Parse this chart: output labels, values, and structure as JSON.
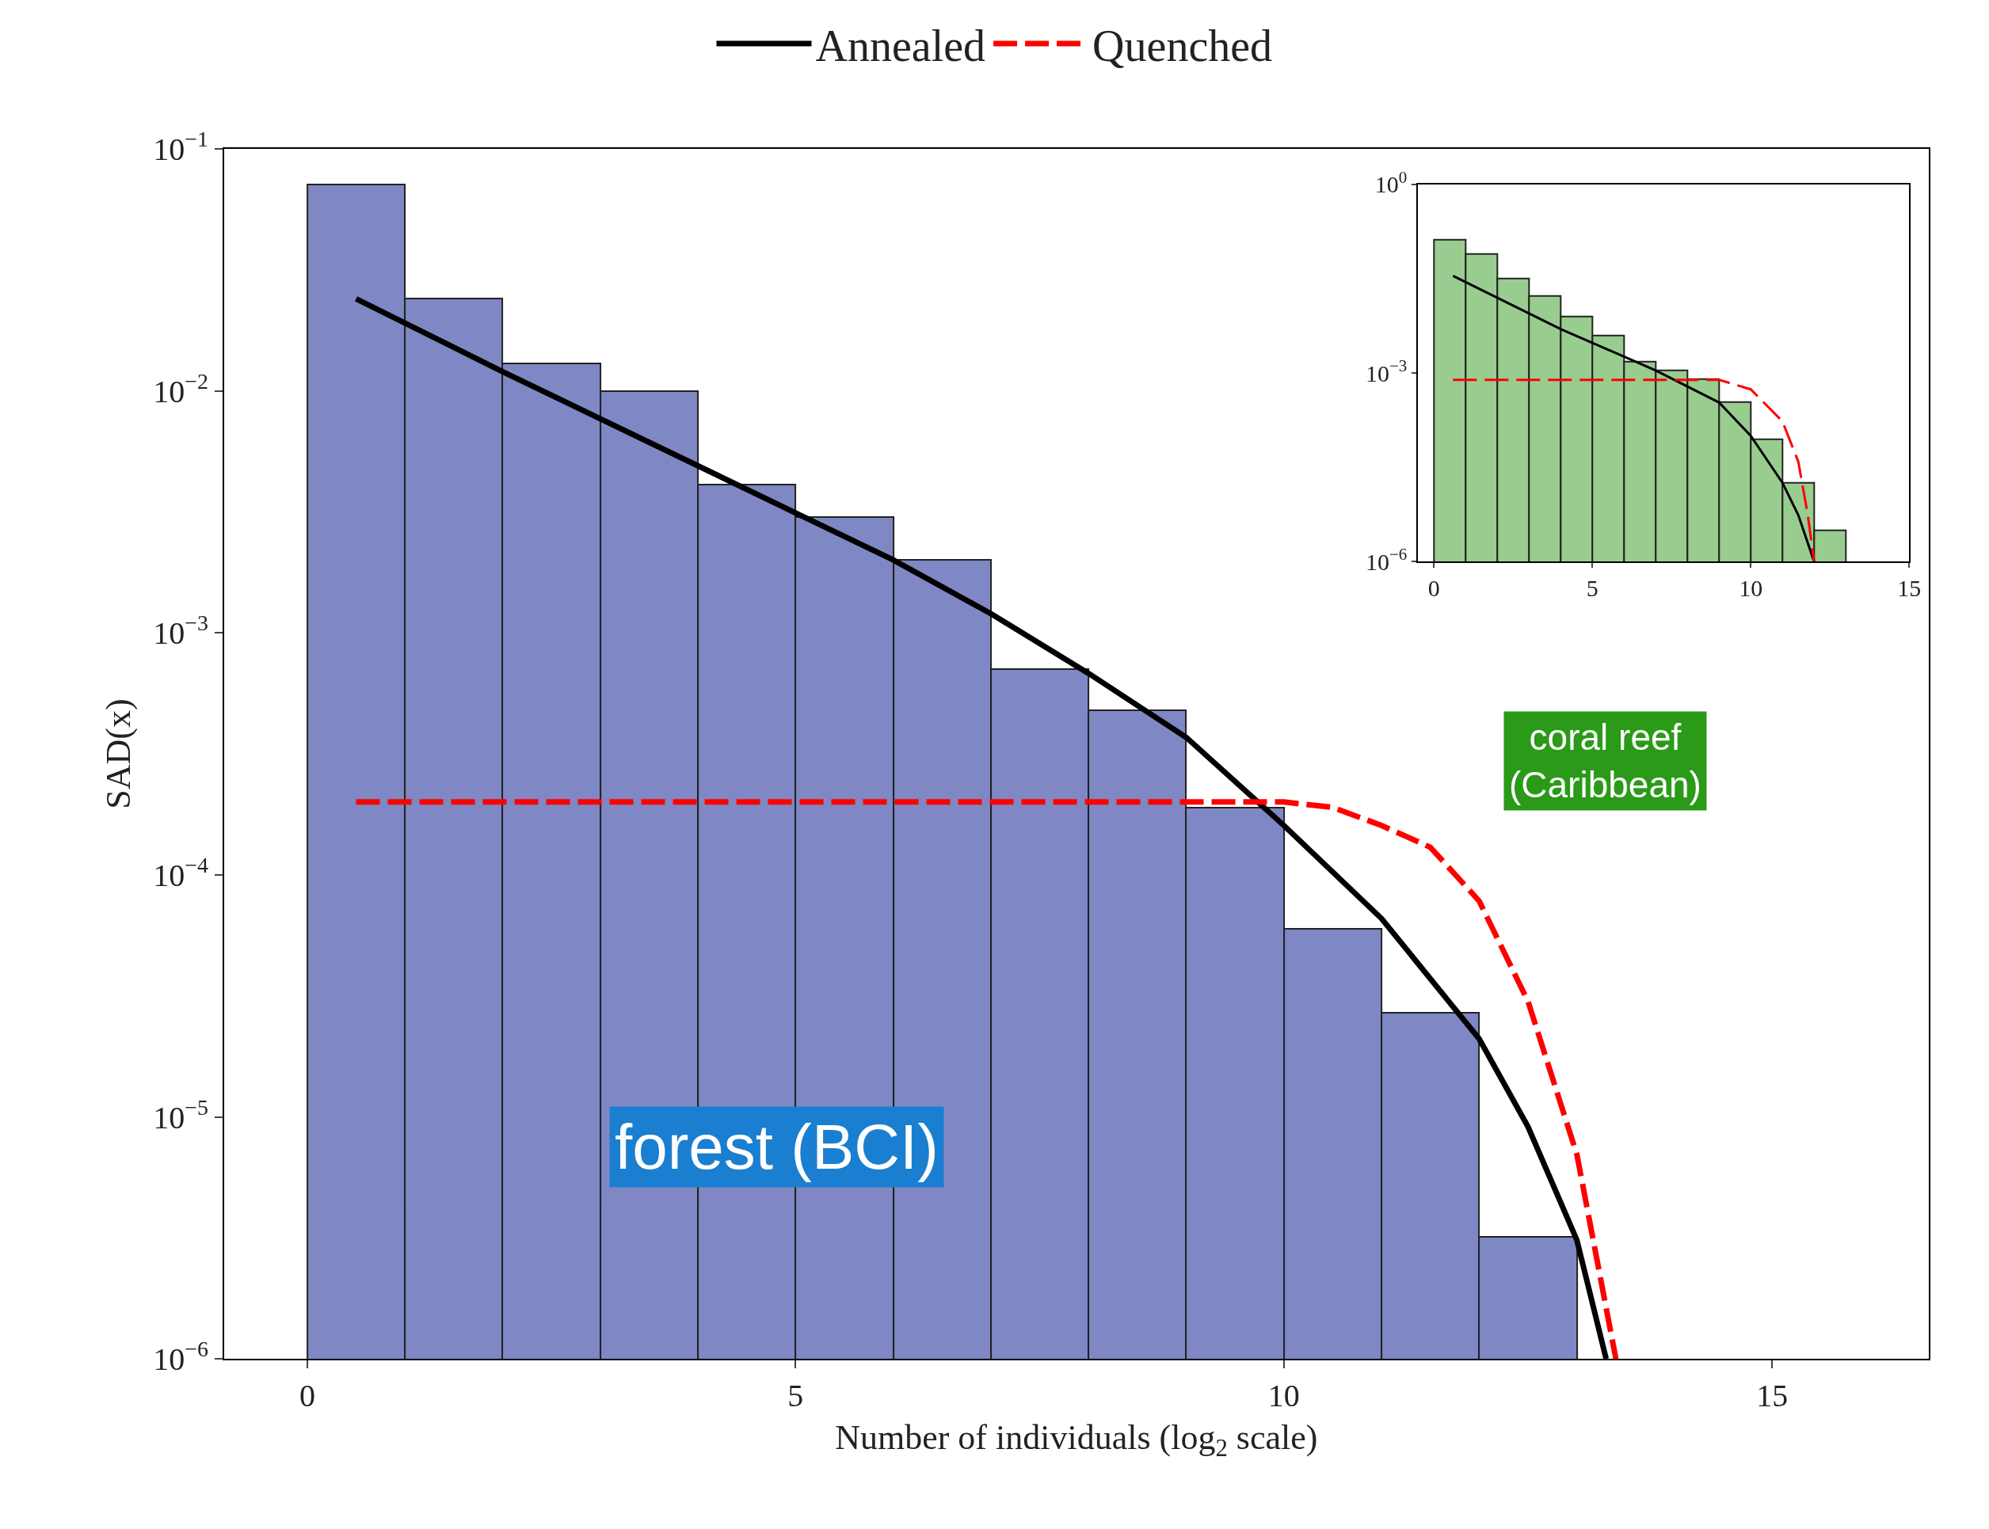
{
  "chart_data": [
    {
      "type": "histogram",
      "xlabel": "Number of individuals (log$_{2}$ scale)",
      "ylabel": "SAD(x)",
      "log": "y",
      "legend": "top",
      "color": "#7f88c4",
      "bins": [
        0,
        1,
        2,
        3,
        4,
        5,
        6,
        7,
        8,
        9,
        10,
        11,
        12,
        13
      ],
      "values": [
        0.071,
        0.024,
        0.013,
        0.01,
        0.0041,
        0.003,
        0.002,
        0.00071,
        0.00048,
        0.00019,
        6e-05,
        2.7e-05,
        3.2e-06
      ],
      "series": [
        {
          "name": "Annealed",
          "type": "line",
          "color": "#000000",
          "line_style": "solid",
          "x": [
            0.5,
            2,
            4,
            6,
            7,
            8,
            9,
            10,
            11,
            12,
            12.5,
            13,
            13.3
          ],
          "values": [
            0.024,
            0.012,
            0.0049,
            0.002,
            0.0012,
            0.00068,
            0.00037,
            0.00016,
            6.6e-05,
            2.1e-05,
            9.1e-06,
            3.1e-06,
            1e-06
          ]
        },
        {
          "name": "Quenched",
          "type": "line",
          "color": "#ff0000",
          "line_style": "dashed",
          "x": [
            0.5,
            10,
            10.5,
            11,
            11.5,
            12,
            12.5,
            13,
            13.4
          ],
          "values": [
            0.0002,
            0.0002,
            0.00019,
            0.00016,
            0.00013,
            7.8e-05,
            3e-05,
            7e-06,
            1e-06
          ]
        }
      ],
      "xlim": [
        -0.85,
        16.6
      ],
      "xticks": [
        0,
        5,
        10,
        15
      ],
      "ylim": [
        1e-06,
        0.1
      ],
      "yticks": [
        {
          "value": 1e-06,
          "label": "10$^{−6}$"
        },
        {
          "value": 1e-05,
          "label": "10$^{−5}$"
        },
        {
          "value": 0.0001,
          "label": "10$^{−4}$"
        },
        {
          "value": 0.001,
          "label": "10$^{−3}$"
        },
        {
          "value": 0.01,
          "label": "10$^{−2}$"
        },
        {
          "value": 0.1,
          "label": "10$^{−1}$"
        }
      ],
      "annotations": [
        "forest (BCI)"
      ]
    },
    {
      "type": "histogram",
      "log": "y",
      "color": "#99cc8f",
      "bins": [
        0,
        1,
        2,
        3,
        4,
        5,
        6,
        7,
        8,
        9,
        10,
        11,
        12,
        13
      ],
      "values": [
        0.13,
        0.079,
        0.032,
        0.017,
        0.0078,
        0.0039,
        0.0015,
        0.0011,
        0.00081,
        0.00034,
        8.7e-05,
        1.8e-05,
        3.1e-06
      ],
      "series": [
        {
          "type": "line",
          "color": "#000000",
          "line_style": "solid",
          "x": [
            0.6,
            4,
            7,
            9,
            10,
            11,
            11.5,
            12
          ],
          "values": [
            0.035,
            0.005,
            0.0011,
            0.00034,
            0.0001,
            1.8e-05,
            5.5e-06,
            1e-06
          ]
        },
        {
          "type": "line",
          "color": "#ff0000",
          "line_style": "dashed",
          "x": [
            0.6,
            9,
            10,
            11,
            11.5,
            11.8,
            12
          ],
          "values": [
            0.00078,
            0.00078,
            0.00055,
            0.00017,
            3.9e-05,
            5.5e-06,
            1e-06
          ]
        }
      ],
      "xlim": [
        -0.5,
        15
      ],
      "xticks": [
        0,
        5,
        10,
        15
      ],
      "ylim": [
        1e-06,
        1
      ],
      "yticks": [
        {
          "value": 1e-06,
          "label": "10$^{−6}$"
        },
        {
          "value": 0.001,
          "label": "10$^{−3}$"
        },
        {
          "value": 1,
          "label": "10$^{0}$"
        }
      ],
      "annotations": [
        "coral reef\n(Caribbean)"
      ]
    }
  ]
}
